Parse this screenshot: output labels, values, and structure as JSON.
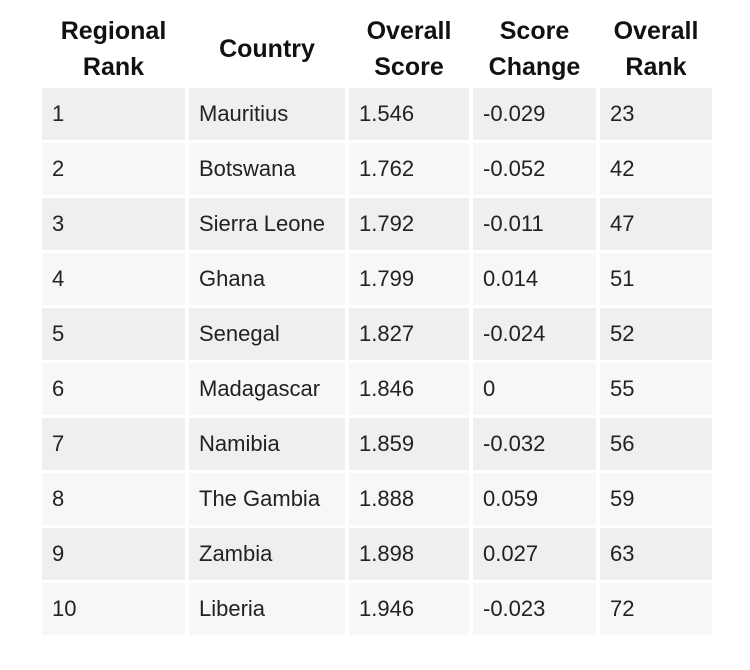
{
  "table": {
    "columns": [
      "Regional Rank",
      "Country",
      "Overall Score",
      "Score Change",
      "Overall Rank"
    ],
    "rows": [
      [
        "1",
        "Mauritius",
        "1.546",
        "-0.029",
        "23"
      ],
      [
        "2",
        "Botswana",
        "1.762",
        "-0.052",
        "42"
      ],
      [
        "3",
        "Sierra Leone",
        "1.792",
        "-0.011",
        "47"
      ],
      [
        "4",
        "Ghana",
        "1.799",
        "0.014",
        "51"
      ],
      [
        "5",
        "Senegal",
        "1.827",
        "-0.024",
        "52"
      ],
      [
        "6",
        "Madagascar",
        "1.846",
        "0",
        "55"
      ],
      [
        "7",
        "Namibia",
        "1.859",
        "-0.032",
        "56"
      ],
      [
        "8",
        "The Gambia",
        "1.888",
        "0.059",
        "59"
      ],
      [
        "9",
        "Zambia",
        "1.898",
        "0.027",
        "63"
      ],
      [
        "10",
        "Liberia",
        "1.946",
        "-0.023",
        "72"
      ]
    ]
  }
}
